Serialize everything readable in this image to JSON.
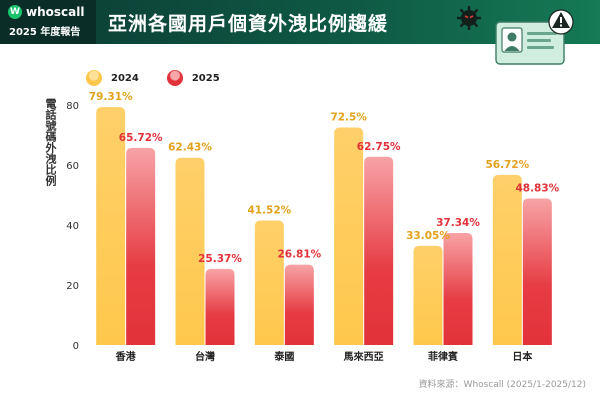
{
  "header": {
    "brand": "whoscall",
    "brand_mark": "W",
    "report_label": "2025 年度報告",
    "title": "亞洲各國用戶個資外洩比例趨緩"
  },
  "source": "資料來源：Whoscall (2025/1-2025/12)",
  "colors": {
    "header_dark": "#0a2d27",
    "header_green": "#157a55",
    "bar_2024_top": "#ffcf5e",
    "bar_2024_bottom": "#ffc64a",
    "bar_2025_top": "#f8a8ab",
    "bar_2025_bottom": "#e2323a",
    "label_2024": "#e2a21b",
    "label_2025": "#e2323a",
    "axis_text": "#333333",
    "grid": "#e6e6e6"
  },
  "chart_data": {
    "type": "bar",
    "categories": [
      "香港",
      "台灣",
      "泰國",
      "馬來西亞",
      "菲律賓",
      "日本"
    ],
    "series": [
      {
        "name": "2024",
        "values": [
          79.31,
          62.43,
          41.52,
          72.5,
          33.05,
          56.72
        ],
        "labels": [
          "79.31%",
          "62.43%",
          "41.52%",
          "72.5%",
          "33.05%",
          "56.72%"
        ]
      },
      {
        "name": "2025",
        "values": [
          65.72,
          25.37,
          26.81,
          62.75,
          37.34,
          48.83
        ],
        "labels": [
          "65.72%",
          "25.37%",
          "26.81%",
          "62.75%",
          "37.34%",
          "48.83%"
        ]
      }
    ],
    "ylabel": "電話號碼外洩比例",
    "ylim": [
      0,
      80
    ],
    "yticks": [
      0,
      20,
      40,
      60,
      80
    ],
    "legend_position": "top-left",
    "grid": false
  }
}
